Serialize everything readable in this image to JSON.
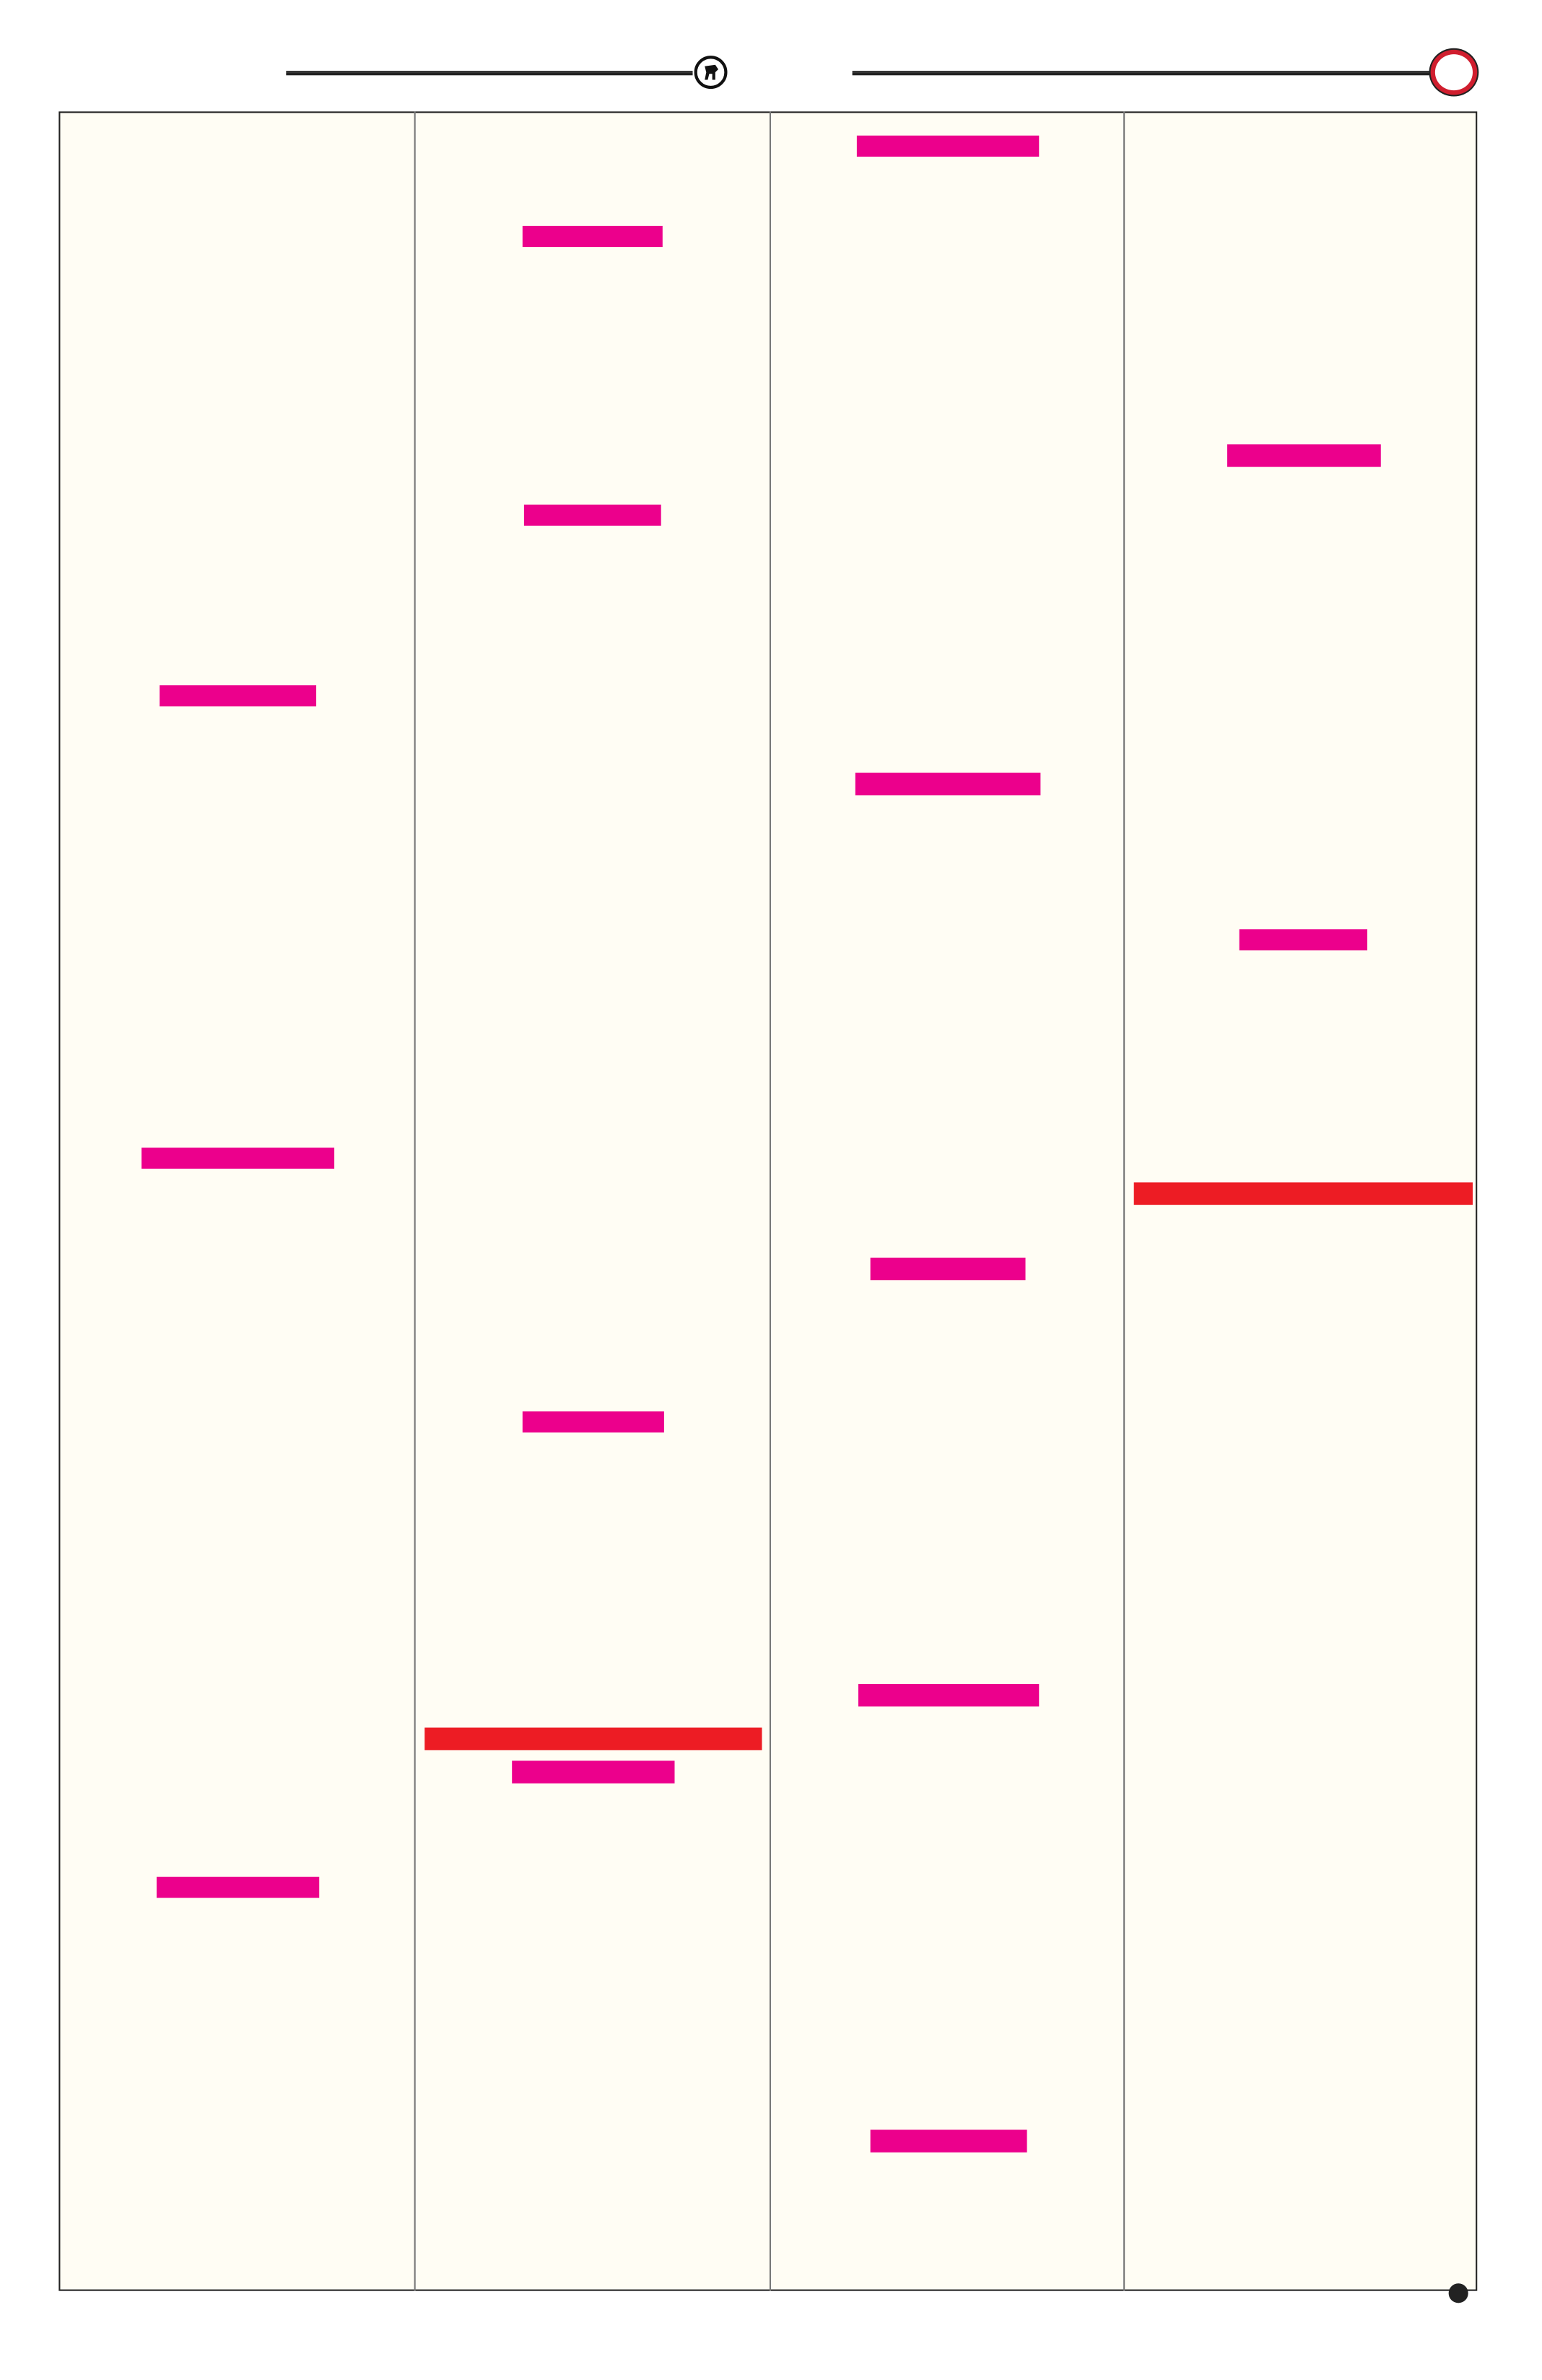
{
  "colors": {
    "page_background": "#fffdf4",
    "frame_border": "#222222",
    "highlight_magenta": "#ec008c",
    "highlight_red": "#ed1c24",
    "badge_ring": "#d01e2e"
  },
  "header": {
    "logo_icon": "bull-emblem-icon",
    "badge_icon": "red-circle-icon"
  },
  "columns": [
    {
      "bars": [
        "magenta",
        "magenta",
        "magenta"
      ]
    },
    {
      "bars": [
        "magenta",
        "magenta",
        "magenta",
        "red",
        "magenta"
      ]
    },
    {
      "bars": [
        "magenta",
        "magenta",
        "magenta",
        "magenta",
        "magenta"
      ]
    },
    {
      "bars": [
        "magenta",
        "magenta",
        "red"
      ]
    }
  ],
  "footer": {
    "marker_icon": "black-dot-icon"
  }
}
